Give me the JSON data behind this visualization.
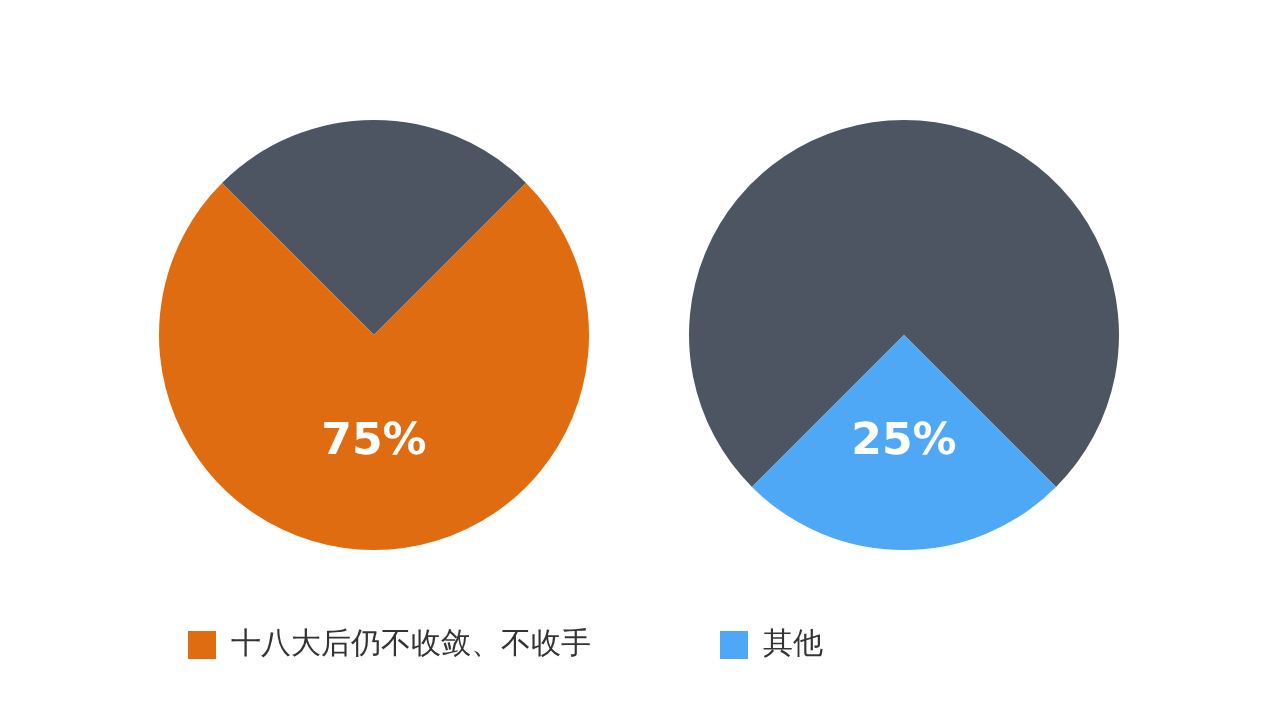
{
  "chart_data": [
    {
      "type": "pie",
      "categories": [
        null,
        "十八大后仍不收敛、不收手"
      ],
      "values": [
        25,
        75
      ],
      "colors": [
        "#4d5563",
        "#e06c12"
      ],
      "value_labels": [
        null,
        "75%"
      ],
      "legend": "bottom"
    },
    {
      "type": "pie",
      "categories": [
        null,
        "其他"
      ],
      "values": [
        75,
        25
      ],
      "colors": [
        "#4d5563",
        "#4fa8f5"
      ],
      "value_labels": [
        null,
        "25%"
      ],
      "legend": "bottom"
    }
  ]
}
